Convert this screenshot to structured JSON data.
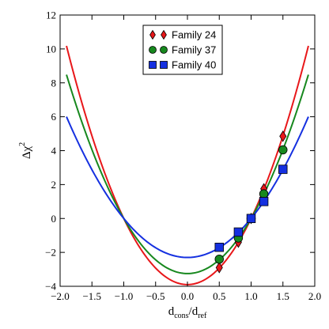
{
  "chart_data": {
    "type": "line",
    "title": "",
    "xlabel": "d_cons/d_ref",
    "xlabel_parts": {
      "main": "d",
      "sub1": "cons",
      "slash": "/d",
      "sub2": "ref"
    },
    "ylabel": "Δχ²",
    "ylabel_parts": {
      "main": "Δχ",
      "sup": "2"
    },
    "xlim": [
      -2.0,
      2.0
    ],
    "ylim": [
      -4,
      12
    ],
    "xticks": [
      -2.0,
      -1.5,
      -1.0,
      -0.5,
      0.0,
      0.5,
      1.0,
      1.5,
      2.0
    ],
    "xtick_labels": [
      "−2.0",
      "−1.5",
      "−1.0",
      "−0.5",
      "0.0",
      "0.5",
      "1.0",
      "1.5",
      "2.0"
    ],
    "yticks": [
      -4,
      -2,
      0,
      2,
      4,
      6,
      8,
      10,
      12
    ],
    "ytick_labels": [
      "−4",
      "−2",
      "0",
      "2",
      "4",
      "6",
      "8",
      "10",
      "12"
    ],
    "grid": false,
    "legend_position": "top-center",
    "series": [
      {
        "name": "Family 24",
        "color": "#e8171a",
        "marker": "diamond",
        "curve": {
          "minimum_x": 0.0,
          "minimum_y": -3.9,
          "x_range": [
            -1.9,
            1.9
          ]
        },
        "points": [
          {
            "x": 0.5,
            "y": -2.9
          },
          {
            "x": 0.8,
            "y": -1.4
          },
          {
            "x": 1.0,
            "y": 0.0
          },
          {
            "x": 1.2,
            "y": 1.75
          },
          {
            "x": 1.5,
            "y": 4.85
          }
        ]
      },
      {
        "name": "Family 37",
        "color": "#17881e",
        "marker": "circle",
        "curve": {
          "minimum_x": 0.0,
          "minimum_y": -3.25,
          "x_range": [
            -1.9,
            1.9
          ]
        },
        "points": [
          {
            "x": 0.5,
            "y": -2.4
          },
          {
            "x": 0.8,
            "y": -1.15
          },
          {
            "x": 1.0,
            "y": 0.0
          },
          {
            "x": 1.2,
            "y": 1.45
          },
          {
            "x": 1.5,
            "y": 4.05
          }
        ]
      },
      {
        "name": "Family 40",
        "color": "#1530e0",
        "marker": "square",
        "curve": {
          "minimum_x": 0.0,
          "minimum_y": -2.3,
          "x_range": [
            -1.9,
            1.9
          ]
        },
        "points": [
          {
            "x": 0.5,
            "y": -1.7
          },
          {
            "x": 0.8,
            "y": -0.8
          },
          {
            "x": 1.0,
            "y": 0.0
          },
          {
            "x": 1.2,
            "y": 1.0
          },
          {
            "x": 1.5,
            "y": 2.9
          }
        ]
      }
    ]
  }
}
